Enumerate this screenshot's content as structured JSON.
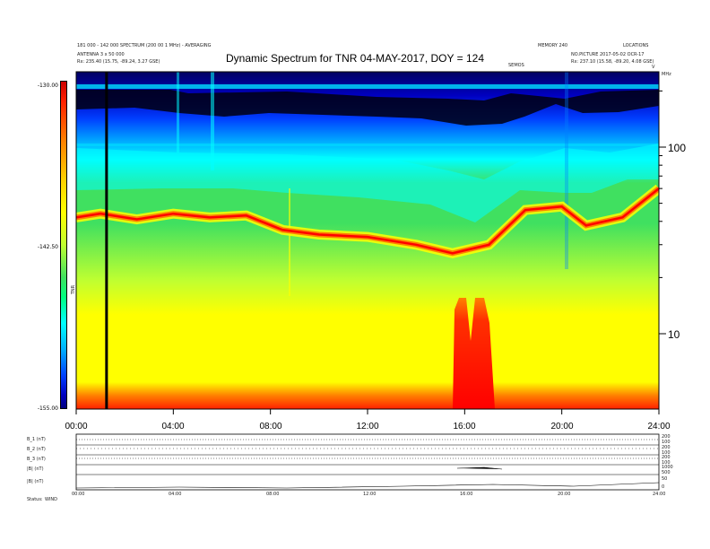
{
  "header": {
    "left_lines": [
      "181 000 - 142 000 SPECTRUM (200 00 1 MHz) - AVERAGING",
      "ANTENNA 3 x 50 000",
      "Rx:   235.40 (15.75, -89.24, 3.27 GSE)"
    ],
    "right_lines": [
      "MEMORY 240",
      "NO.PICTURE 2017-05-02 OCR-17",
      "Rx:   237.10 (15.58, -89.20, 4.08 GSE)"
    ],
    "right_top_labels": [
      "MEMORY 240",
      "LOCATIONS"
    ],
    "mid_small_label": "SEMOS",
    "corner_labels": [
      "V",
      "MHz"
    ]
  },
  "chart_data": {
    "type": "heatmap",
    "title": "Dynamic Spectrum for TNR 04-MAY-2017, DOY = 124",
    "x_ticks": [
      "00:00",
      "04:00",
      "08:00",
      "12:00",
      "16:00",
      "20:00",
      "24:00"
    ],
    "y_ticks_right": [
      "100",
      "10"
    ],
    "y_tick_values": [
      100,
      10
    ],
    "y_scale": "log",
    "colorbar": {
      "ticks": [
        "-130.00",
        "-142.50",
        "-155.00"
      ],
      "values": [
        -130,
        -142.5,
        -155
      ],
      "label": "TNR"
    },
    "marker_time": "01:15",
    "intensity_band_ridge_khz": [
      {
        "t": 0.0,
        "f": 42
      },
      {
        "t": 1.0,
        "f": 44
      },
      {
        "t": 2.5,
        "f": 41
      },
      {
        "t": 4.0,
        "f": 44
      },
      {
        "t": 5.5,
        "f": 42
      },
      {
        "t": 7.0,
        "f": 43
      },
      {
        "t": 8.5,
        "f": 36
      },
      {
        "t": 10.0,
        "f": 34
      },
      {
        "t": 12.0,
        "f": 33
      },
      {
        "t": 14.0,
        "f": 30
      },
      {
        "t": 15.5,
        "f": 27
      },
      {
        "t": 17.0,
        "f": 30
      },
      {
        "t": 18.5,
        "f": 46
      },
      {
        "t": 20.0,
        "f": 48
      },
      {
        "t": 21.0,
        "f": 38
      },
      {
        "t": 22.5,
        "f": 42
      },
      {
        "t": 24.0,
        "f": 60
      }
    ],
    "colors": {
      "low": "#ffff00",
      "mid": "#40e060",
      "cyan": "#00ffff",
      "blue": "#0040ff",
      "dark": "#000000",
      "high": "#ff0000"
    }
  },
  "lower_panel": {
    "row_labels": [
      "B_1 (nT)",
      "B_2 (nT)",
      "B_3 (nT)",
      "|B| (nT)",
      "|B| (nT)"
    ],
    "right_ticks": [
      [
        "200",
        "100"
      ],
      [
        "200",
        "100"
      ],
      [
        "200",
        "100"
      ],
      [
        "1000",
        "500"
      ],
      [
        "50",
        "0"
      ]
    ],
    "time_ticks": [
      "00:00",
      "04:00",
      "08:00",
      "12:00",
      "16:00",
      "20:00",
      "24:00"
    ],
    "footer": [
      "Status:",
      "WIND"
    ]
  }
}
